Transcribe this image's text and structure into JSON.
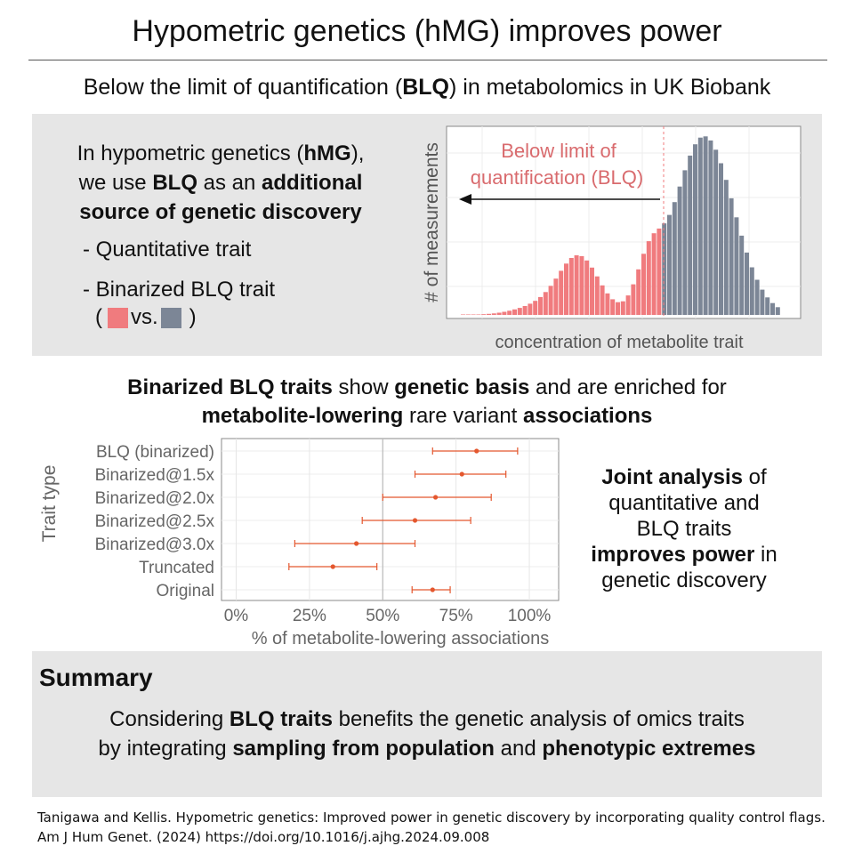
{
  "title": "Hypometric genetics (hMG) improves power",
  "subtitle_parts": [
    "Below the limit of quantification (",
    "BLQ",
    ") in metabolomics in UK Biobank"
  ],
  "intro": {
    "p1": "In hypometric genetics (",
    "p2": "hMG",
    "p3": "),",
    "p4": "we use ",
    "p5": "BLQ",
    "p6": " as an ",
    "p7": "additional",
    "p8": "source of genetic discovery"
  },
  "bullets": [
    "- Quantitative trait",
    "- Binarized BLQ trait"
  ],
  "legend": {
    "open": "(",
    "vs": "vs.",
    "close": ")"
  },
  "colors": {
    "blq": "#f07b7e",
    "quant": "#7c8696",
    "forest": "#e4572e",
    "panel": "#e6e6e6"
  },
  "histogram": {
    "annotation_line1": "Below limit of",
    "annotation_line2": "quantification (BLQ)",
    "ylabel": "# of measurements",
    "xlabel": "concentration of metabolite trait"
  },
  "mid_heading": {
    "p1": "Binarized BLQ traits",
    "p2": " show ",
    "p3": "genetic basis",
    "p4": " and are enriched for",
    "p5": "metabolite-lowering",
    "p6": " rare variant ",
    "p7": "associations"
  },
  "chart_data": {
    "type": "scatter",
    "title": "",
    "xlabel": "% of metabolite-lowering associations",
    "ylabel": "Trait type",
    "xlim": [
      -0.05,
      1.1
    ],
    "x_ticks": [
      0,
      0.25,
      0.5,
      0.75,
      1.0
    ],
    "x_tick_labels": [
      "0%",
      "25%",
      "50%",
      "75%",
      "100%"
    ],
    "grid": true,
    "categories": [
      "BLQ (binarized)",
      "Binarized@1.5x",
      "Binarized@2.0x",
      "Binarized@2.5x",
      "Binarized@3.0x",
      "Truncated",
      "Original"
    ],
    "estimates": [
      0.82,
      0.77,
      0.68,
      0.61,
      0.41,
      0.33,
      0.67
    ],
    "ci_low": [
      0.67,
      0.61,
      0.5,
      0.43,
      0.2,
      0.18,
      0.6
    ],
    "ci_high": [
      0.96,
      0.92,
      0.87,
      0.8,
      0.61,
      0.48,
      0.73
    ]
  },
  "joint": {
    "p1": "Joint analysis",
    "p2": " of",
    "p3": "quantitative and",
    "p4": "BLQ traits",
    "p5": "improves power",
    "p6": " in",
    "p7": "genetic discovery"
  },
  "summary": {
    "title": "Summary",
    "p1": "Considering ",
    "p2": "BLQ traits",
    "p3": " benefits the genetic analysis of omics traits",
    "p4": "by integrating ",
    "p5": "sampling from population",
    "p6": " and ",
    "p7": "phenotypic extremes"
  },
  "citation": {
    "line1": "Tanigawa and Kellis. Hypometric genetics: Improved power in genetic discovery by incorporating quality control flags.",
    "line2": "Am J Hum Genet. (2024) https://doi.org/10.1016/j.ajhg.2024.09.008"
  }
}
